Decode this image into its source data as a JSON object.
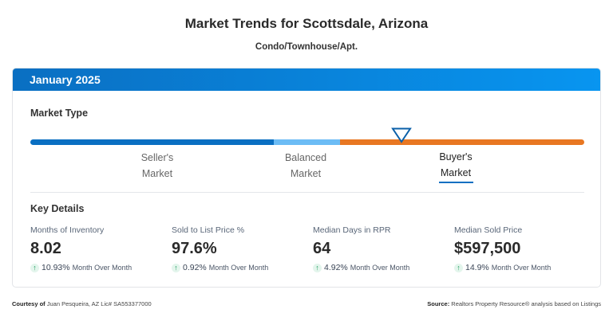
{
  "title": "Market Trends for Scottsdale, Arizona",
  "subtitle": "Condo/Townhouse/Apt.",
  "period": "January 2025",
  "market_type": {
    "heading": "Market Type",
    "indicator_position": 0.67,
    "colors": {
      "sellers": "#0a6fc2",
      "balanced": "#6cbcf5",
      "buyers": "#e87722"
    },
    "labels": [
      {
        "line1": "Seller's",
        "line2": "Market"
      },
      {
        "line1": "Balanced",
        "line2": "Market"
      },
      {
        "line1": "Buyer's",
        "line2": "Market"
      }
    ],
    "active": "Buyer's Market"
  },
  "key_details": {
    "heading": "Key Details",
    "items": [
      {
        "label": "Months of Inventory",
        "value": "8.02",
        "change": "10.93%",
        "change_label": "Month Over Month"
      },
      {
        "label": "Sold to List Price %",
        "value": "97.6%",
        "change": "0.92%",
        "change_label": "Month Over Month"
      },
      {
        "label": "Median Days in RPR",
        "value": "64",
        "change": "4.92%",
        "change_label": "Month Over Month"
      },
      {
        "label": "Median Sold Price",
        "value": "$597,500",
        "change": "14.9%",
        "change_label": "Month Over Month"
      }
    ]
  },
  "footer": {
    "courtesy_label": "Courtesy of",
    "courtesy": "Juan Pesqueira, AZ Lic# SA553377000",
    "source_label": "Source:",
    "source": "Realtors Property Resource® analysis based on Listings"
  }
}
